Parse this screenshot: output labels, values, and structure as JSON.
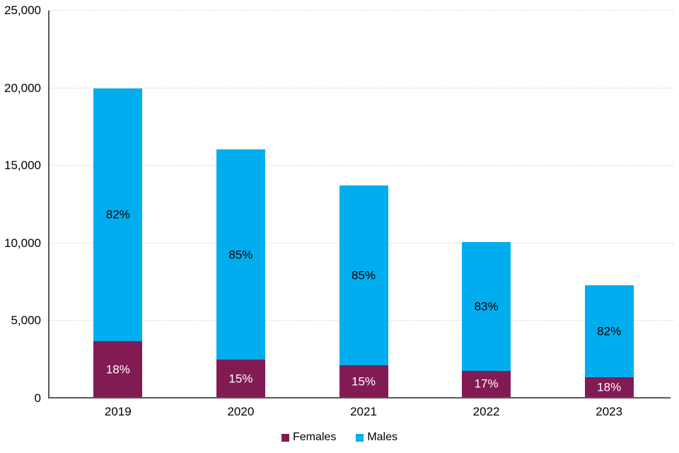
{
  "chart": {
    "background": "#FFFFFF",
    "axis_color": "#595959",
    "gridline_color": "#D9D9D9",
    "text_color": "#000000"
  },
  "chart_data": {
    "type": "bar",
    "stacked": true,
    "title": "",
    "xlabel": "",
    "ylabel": "",
    "categories": [
      "2019",
      "2020",
      "2021",
      "2022",
      "2023"
    ],
    "series": [
      {
        "name": "Females",
        "color": "#821A54",
        "label_text_color": "#FFFFFF",
        "values": [
          3600,
          2400,
          2050,
          1700,
          1300
        ],
        "percent_labels": [
          "18%",
          "15%",
          "15%",
          "17%",
          "18%"
        ]
      },
      {
        "name": "Males",
        "color": "#00AEEF",
        "label_text_color": "#000000",
        "values": [
          16300,
          13550,
          11600,
          8300,
          5900
        ],
        "percent_labels": [
          "82%",
          "85%",
          "85%",
          "83%",
          "82%"
        ]
      }
    ],
    "totals": [
      19900,
      15950,
      13650,
      10000,
      7200
    ],
    "ylim": [
      0,
      25000
    ],
    "ytick_interval": 5000,
    "ytick_labels": [
      "0",
      "5,000",
      "10,000",
      "15,000",
      "20,000",
      "25,000"
    ],
    "grid": "horizontal-dashed",
    "legend": {
      "position": "bottom-center",
      "entries": [
        "Females",
        "Males"
      ]
    }
  }
}
